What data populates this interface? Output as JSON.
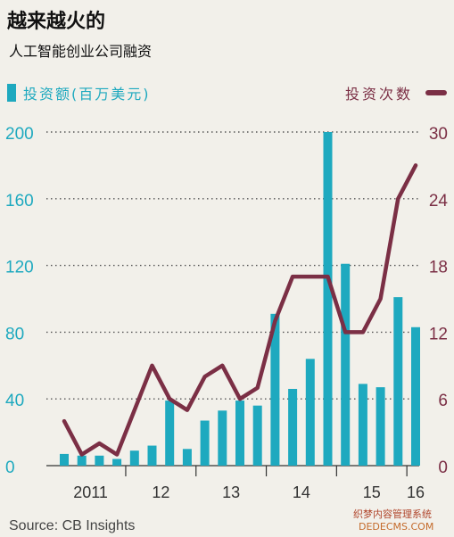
{
  "title": "越来越火的",
  "subtitle": "人工智能创业公司融资",
  "legend_left": "投资额(百万美元)",
  "legend_right": "投资次数",
  "source": "Source: CB Insights",
  "watermark_line1": "织梦内容管理系统",
  "watermark_line2": "DEDECMS.COM",
  "colors": {
    "bar": "#1ea9bf",
    "line": "#7b2f45",
    "grid": "#555555",
    "background": "#f2f0ea"
  },
  "chart_data": {
    "type": "bar",
    "x_tick_labels": [
      "2011",
      "12",
      "13",
      "14",
      "15",
      "16"
    ],
    "y_left_ticks": [
      0,
      40,
      80,
      120,
      160,
      200
    ],
    "y_right_ticks": [
      0,
      6,
      12,
      18,
      24,
      30
    ],
    "y_left_range": [
      0,
      200
    ],
    "y_right_range": [
      0,
      30
    ],
    "grid": "horizontal-dotted",
    "series": [
      {
        "name": "投资额(百万美元)",
        "axis": "left",
        "kind": "bar",
        "values": [
          7,
          6,
          6,
          4,
          9,
          12,
          39,
          10,
          27,
          33,
          39,
          36,
          91,
          46,
          64,
          200,
          121,
          49,
          47,
          101,
          83
        ]
      },
      {
        "name": "投资次数",
        "axis": "right",
        "kind": "line",
        "values": [
          4,
          1,
          2,
          1,
          5,
          9,
          6,
          5,
          8,
          9,
          6,
          7,
          13,
          17,
          17,
          17,
          12,
          12,
          15,
          24,
          27
        ]
      }
    ]
  }
}
